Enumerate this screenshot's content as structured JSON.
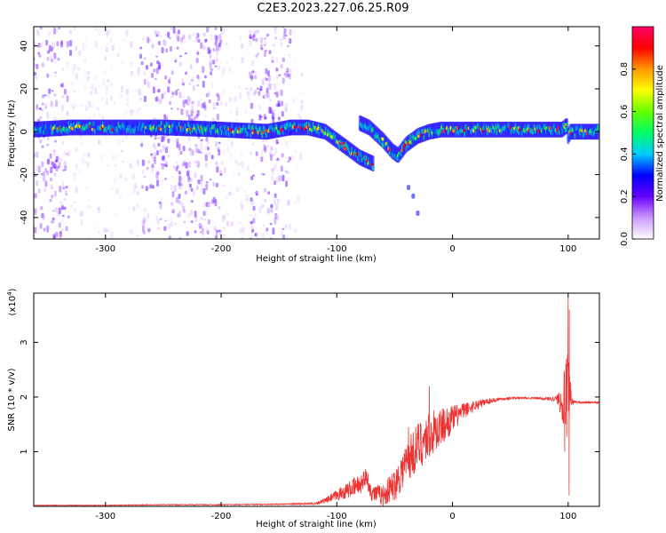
{
  "page": {
    "title": "C2E3.2023.227.06.25.R09"
  },
  "chart_data": [
    {
      "type": "heatmap",
      "xlabel": "Height of straight line (km)",
      "ylabel": "Frequency (Hz)",
      "xlim": [
        -362,
        127
      ],
      "ylim": [
        -50,
        49
      ],
      "xticks": [
        -300,
        -200,
        -100,
        0,
        100
      ],
      "yticks": [
        -40,
        -20,
        0,
        20,
        40
      ],
      "colorbar": {
        "label": "Normalized spectral amplitude",
        "ticks": [
          0.0,
          0.2,
          0.4,
          0.6,
          0.8
        ],
        "range": [
          0,
          1
        ],
        "colors": [
          "#ffffff",
          "#cc99ff",
          "#6600ff",
          "#0000ff",
          "#00ccff",
          "#00ff66",
          "#66ff00",
          "#ffff00",
          "#ff9900",
          "#ff0000",
          "#ff0066"
        ]
      },
      "ridge": {
        "x": [
          -362,
          -330,
          -300,
          -250,
          -200,
          -160,
          -140,
          -125,
          -110,
          -100,
          -90,
          -80,
          -72,
          -68,
          -80,
          -72,
          -60,
          -52,
          -47,
          -40,
          -30,
          -20,
          -10,
          0,
          20,
          50,
          80,
          95,
          99,
          100,
          102,
          110,
          127
        ],
        "y": [
          1,
          2,
          2,
          2,
          1,
          0,
          2,
          2,
          0,
          -4,
          -8,
          -12,
          -14,
          -15,
          4,
          2,
          -4,
          -9,
          -11,
          -6,
          -2,
          0,
          1,
          1,
          1,
          1,
          1,
          1,
          3,
          -2,
          0,
          0,
          0
        ],
        "peak_amplitude": 1.0
      },
      "tail": {
        "x": [
          -38,
          -34,
          -30
        ],
        "y": [
          -26,
          -30,
          -38
        ]
      }
    },
    {
      "type": "line",
      "xlabel": "Height of straight line (km)",
      "ylabel": "SNR (10 * v/v)",
      "scale_label": "(x10",
      "scale_exponent": "4",
      "xlim": [
        -362,
        127
      ],
      "ylim": [
        0,
        3.9
      ],
      "xticks": [
        -300,
        -200,
        -100,
        0,
        100
      ],
      "yticks": [
        1,
        2,
        3
      ],
      "series": [
        {
          "color": "#ee3333",
          "x": [
            -362,
            -300,
            -250,
            -200,
            -150,
            -120,
            -110,
            -100,
            -90,
            -80,
            -75,
            -70,
            -60,
            -50,
            -40,
            -30,
            -20,
            -10,
            0,
            10,
            20,
            30,
            40,
            50,
            60,
            70,
            80,
            90,
            95,
            100,
            103,
            105,
            110,
            127
          ],
          "y": [
            0.02,
            0.02,
            0.03,
            0.03,
            0.04,
            0.05,
            0.1,
            0.2,
            0.3,
            0.4,
            0.55,
            0.25,
            0.2,
            0.4,
            0.8,
            1.1,
            1.3,
            1.45,
            1.6,
            1.75,
            1.85,
            1.92,
            1.96,
            1.98,
            1.98,
            1.98,
            1.97,
            1.97,
            1.95,
            1.96,
            1.92,
            1.91,
            1.9,
            1.9
          ],
          "noise": [
            0.005,
            0.005,
            0.008,
            0.008,
            0.01,
            0.02,
            0.05,
            0.1,
            0.15,
            0.2,
            0.15,
            0.15,
            0.2,
            0.3,
            0.4,
            0.45,
            0.45,
            0.35,
            0.25,
            0.15,
            0.1,
            0.06,
            0.03,
            0.02,
            0.02,
            0.02,
            0.03,
            0.05,
            0.4,
            0.9,
            0.1,
            0.03,
            0.02,
            0.02
          ],
          "spikes": [
            {
              "x": 100,
              "y": 3.85
            },
            {
              "x": 98,
              "y": 2.6
            },
            {
              "x": 100.8,
              "y": 0.2
            },
            {
              "x": 101,
              "y": 3.6
            },
            {
              "x": 97,
              "y": 1.0
            },
            {
              "x": -20,
              "y": 2.2
            },
            {
              "x": -38,
              "y": 1.45
            },
            {
              "x": -73,
              "y": 0.6
            }
          ]
        }
      ]
    }
  ]
}
